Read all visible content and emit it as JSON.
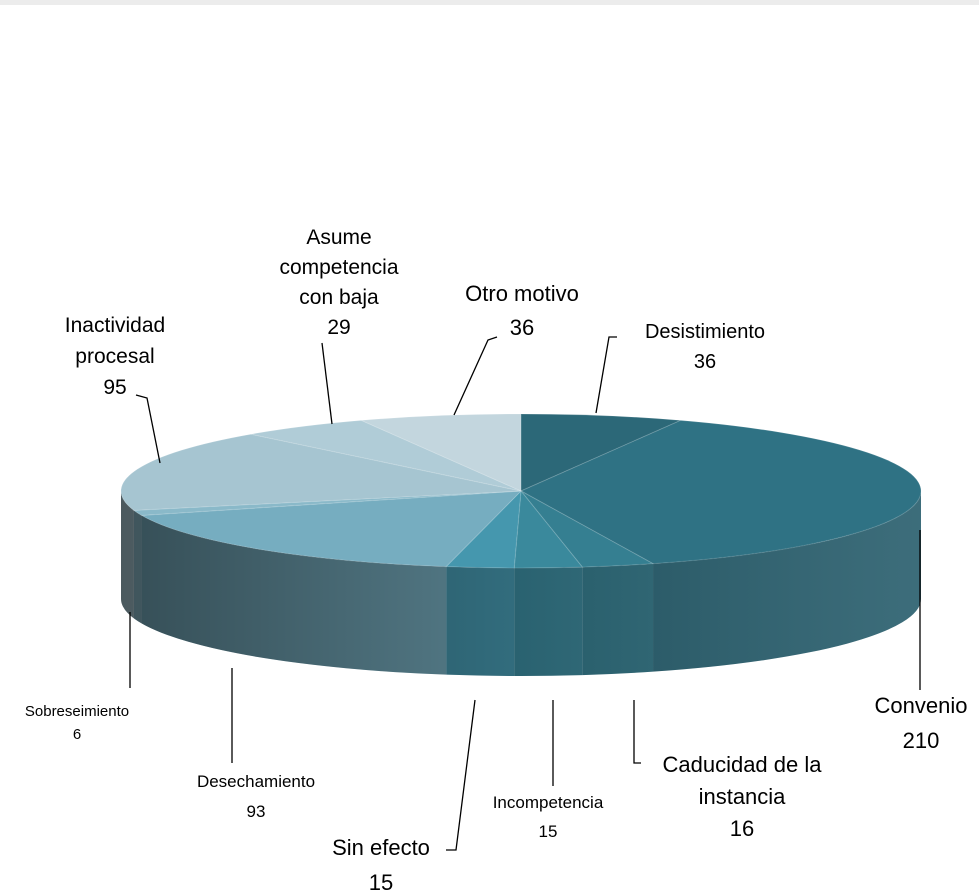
{
  "chart_data": {
    "type": "pie",
    "title": "",
    "variant": "3d-exploded-pie",
    "slices": [
      {
        "label": "Desistimiento",
        "value": 36,
        "color": "#2c6878"
      },
      {
        "label": "Convenio",
        "value": 210,
        "color": "#2f7284"
      },
      {
        "label": "Caducidad de la instancia",
        "value": 16,
        "color": "#357f91"
      },
      {
        "label": "Incompetencia",
        "value": 15,
        "color": "#3a899c"
      },
      {
        "label": "Sin efecto",
        "value": 15,
        "color": "#4597ae"
      },
      {
        "label": "Desechamiento",
        "value": 93,
        "color": "#76adc0"
      },
      {
        "label": "Sobreseimiento",
        "value": 6,
        "color": "#8ab9c9"
      },
      {
        "label": "Inactividad procesal",
        "value": 95,
        "color": "#a6c5d1"
      },
      {
        "label": "Asume competencia con baja",
        "value": 29,
        "color": "#b0ccd7"
      },
      {
        "label": "Otro motivo",
        "value": 36,
        "color": "#c3d6de"
      }
    ],
    "data_labels": [
      {
        "lines": [
          "Desistimiento",
          "36"
        ]
      },
      {
        "lines": [
          "Convenio",
          "210"
        ]
      },
      {
        "lines": [
          "Caducidad de la",
          "instancia",
          "16"
        ]
      },
      {
        "lines": [
          "Incompetencia",
          "15"
        ]
      },
      {
        "lines": [
          "Sin efecto",
          "15"
        ]
      },
      {
        "lines": [
          "Desechamiento",
          "93"
        ]
      },
      {
        "lines": [
          "Sobreseimiento",
          "6"
        ]
      },
      {
        "lines": [
          "Inactividad",
          "procesal",
          "95"
        ]
      },
      {
        "lines": [
          "Asume",
          "competencia",
          "con baja",
          "29"
        ]
      },
      {
        "lines": [
          "Otro motivo",
          "36"
        ]
      }
    ],
    "legend": "none"
  }
}
